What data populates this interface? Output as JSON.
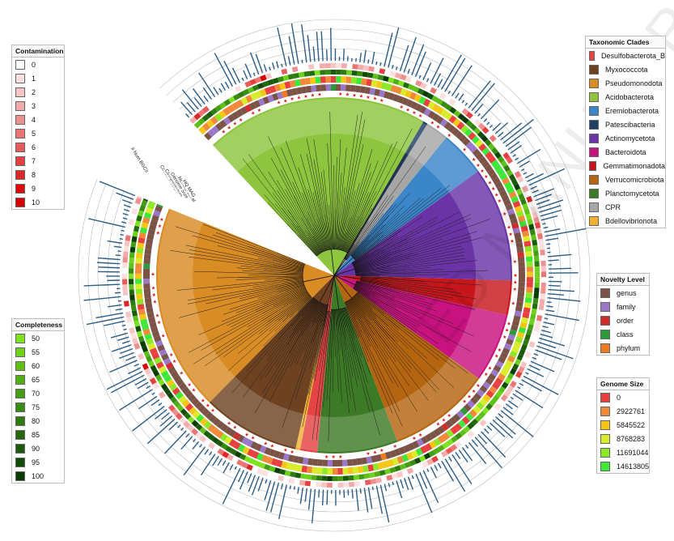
{
  "chart_data": {
    "type": "circular-phylogenetic-tree",
    "ring_labels": [
      "# Num BGCs",
      "Contamination",
      "Completeness",
      "Genome Size",
      "Novelty Level",
      "HQ MAG"
    ],
    "clades": [
      {
        "name": "Acidobacterota",
        "color": "#8dc53e",
        "share": 0.195
      },
      {
        "name": "Patescibacteria",
        "color": "#1f3f64",
        "share": 0.004
      },
      {
        "name": "CPR",
        "color": "#a6a6a6",
        "share": 0.02
      },
      {
        "name": "Eremiobacterota",
        "color": "#3a86c8",
        "share": 0.04
      },
      {
        "name": "Actinomycetota",
        "color": "#6a34a6",
        "share": 0.1
      },
      {
        "name": "Gemmatimonadota",
        "color": "#c6161c",
        "share": 0.03
      },
      {
        "name": "Bacteroidota",
        "color": "#c8127f",
        "share": 0.06
      },
      {
        "name": "Verrucomicrobiota",
        "color": "#b5640f",
        "share": 0.09
      },
      {
        "name": "Planctomycetota",
        "color": "#3d7a26",
        "share": 0.07
      },
      {
        "name": "Desulfobacterota_B",
        "color": "#e54444",
        "share": 0.015
      },
      {
        "name": "Bdellovibrionota",
        "color": "#f0b030",
        "share": 0.004
      },
      {
        "name": "Myxococcota",
        "color": "#6e4220",
        "share": 0.085
      },
      {
        "name": "Pseudomonodota",
        "color": "#d98b24",
        "share": 0.18
      }
    ]
  },
  "legends": {
    "contamination": {
      "title": "Contamination",
      "items": [
        {
          "label": "0",
          "color": "#ffffff"
        },
        {
          "label": "1",
          "color": "#fbe0e0"
        },
        {
          "label": "2",
          "color": "#f7c4c4"
        },
        {
          "label": "3",
          "color": "#f3aaaa"
        },
        {
          "label": "4",
          "color": "#ef9090"
        },
        {
          "label": "5",
          "color": "#eb7575"
        },
        {
          "label": "6",
          "color": "#e75b5b"
        },
        {
          "label": "7",
          "color": "#e34040"
        },
        {
          "label": "8",
          "color": "#df2626"
        },
        {
          "label": "9",
          "color": "#db0b0b"
        },
        {
          "label": "10",
          "color": "#d60000"
        }
      ]
    },
    "completeness": {
      "title": "Completeness",
      "items": [
        {
          "label": "50",
          "color": "#7ee21f"
        },
        {
          "label": "55",
          "color": "#6ed11c"
        },
        {
          "label": "60",
          "color": "#5fc019"
        },
        {
          "label": "65",
          "color": "#51ae16"
        },
        {
          "label": "70",
          "color": "#449d14"
        },
        {
          "label": "75",
          "color": "#398c12"
        },
        {
          "label": "80",
          "color": "#2e7b10"
        },
        {
          "label": "85",
          "color": "#246a0d"
        },
        {
          "label": "90",
          "color": "#1b5a0a"
        },
        {
          "label": "95",
          "color": "#124a07"
        },
        {
          "label": "100",
          "color": "#0a3b05"
        }
      ]
    },
    "clades": {
      "title": "Taxonomic Clades",
      "items": [
        {
          "label": "Desulfobacterota_B",
          "color": "#e54444"
        },
        {
          "label": "Myxococcota",
          "color": "#6e4220"
        },
        {
          "label": "Pseudomonodota",
          "color": "#d98b24"
        },
        {
          "label": "Acidobacterota",
          "color": "#8dc53e"
        },
        {
          "label": "Eremiobacterota",
          "color": "#3a86c8"
        },
        {
          "label": "Patescibacteria",
          "color": "#1f3f64"
        },
        {
          "label": "Actinomycetota",
          "color": "#6a34a6"
        },
        {
          "label": "Bacteroidota",
          "color": "#c8127f"
        },
        {
          "label": "Gemmatimonadota",
          "color": "#c6161c"
        },
        {
          "label": "Verrucomicrobiota",
          "color": "#b5640f"
        },
        {
          "label": "Planctomycetota",
          "color": "#3d7a26"
        },
        {
          "label": "CPR",
          "color": "#a6a6a6"
        },
        {
          "label": "Bdellovibrionota",
          "color": "#f0b030"
        }
      ]
    },
    "novelty": {
      "title": "Novelty Level",
      "items": [
        {
          "label": "genus",
          "color": "#7b5346"
        },
        {
          "label": "family",
          "color": "#9b77c9"
        },
        {
          "label": "order",
          "color": "#d22b2b"
        },
        {
          "label": "class",
          "color": "#2a9a3a"
        },
        {
          "label": "phylum",
          "color": "#f07a1e"
        }
      ]
    },
    "genome_size": {
      "title": "Genome Size",
      "items": [
        {
          "label": "0",
          "color": "#e84040"
        },
        {
          "label": "2922761",
          "color": "#f08a3a"
        },
        {
          "label": "5845522",
          "color": "#f5c518"
        },
        {
          "label": "8768283",
          "color": "#d8ec2a"
        },
        {
          "label": "11691044",
          "color": "#8ee82a"
        },
        {
          "label": "14613805",
          "color": "#3ee83a"
        }
      ]
    }
  },
  "watermark": "ED MANUSCRIPT"
}
